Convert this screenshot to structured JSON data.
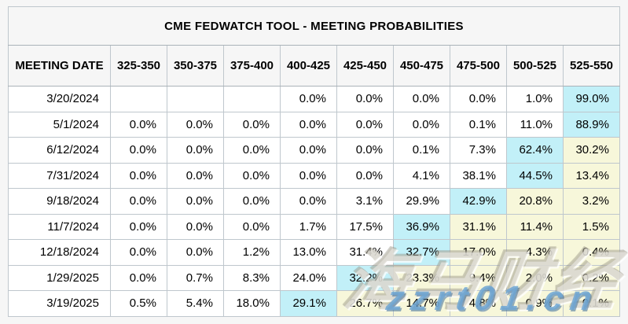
{
  "table": {
    "title": "CME FEDWATCH TOOL - MEETING PROBABILITIES",
    "columns": [
      "MEETING DATE",
      "325-350",
      "350-375",
      "375-400",
      "400-425",
      "425-450",
      "450-475",
      "475-500",
      "500-525",
      "525-550"
    ],
    "rows": [
      {
        "date": "3/20/2024",
        "values": [
          "",
          "",
          "",
          "0.0%",
          "0.0%",
          "0.0%",
          "0.0%",
          "1.0%",
          "99.0%"
        ],
        "hl": [
          "",
          "",
          "",
          "",
          "",
          "",
          "",
          "",
          "c"
        ]
      },
      {
        "date": "5/1/2024",
        "values": [
          "0.0%",
          "0.0%",
          "0.0%",
          "0.0%",
          "0.0%",
          "0.0%",
          "0.1%",
          "11.0%",
          "88.9%"
        ],
        "hl": [
          "",
          "",
          "",
          "",
          "",
          "",
          "",
          "",
          "c"
        ]
      },
      {
        "date": "6/12/2024",
        "values": [
          "0.0%",
          "0.0%",
          "0.0%",
          "0.0%",
          "0.0%",
          "0.1%",
          "7.3%",
          "62.4%",
          "30.2%"
        ],
        "hl": [
          "",
          "",
          "",
          "",
          "",
          "",
          "",
          "c",
          "y"
        ]
      },
      {
        "date": "7/31/2024",
        "values": [
          "0.0%",
          "0.0%",
          "0.0%",
          "0.0%",
          "0.0%",
          "4.1%",
          "38.1%",
          "44.5%",
          "13.4%"
        ],
        "hl": [
          "",
          "",
          "",
          "",
          "",
          "",
          "",
          "c",
          "y"
        ]
      },
      {
        "date": "9/18/2024",
        "values": [
          "0.0%",
          "0.0%",
          "0.0%",
          "0.0%",
          "3.1%",
          "29.9%",
          "42.9%",
          "20.8%",
          "3.2%"
        ],
        "hl": [
          "",
          "",
          "",
          "",
          "",
          "",
          "c",
          "y",
          "y"
        ]
      },
      {
        "date": "11/7/2024",
        "values": [
          "0.0%",
          "0.0%",
          "0.0%",
          "1.7%",
          "17.5%",
          "36.9%",
          "31.1%",
          "11.4%",
          "1.5%"
        ],
        "hl": [
          "",
          "",
          "",
          "",
          "",
          "c",
          "y",
          "y",
          "y"
        ]
      },
      {
        "date": "12/18/2024",
        "values": [
          "0.0%",
          "0.0%",
          "1.2%",
          "13.0%",
          "31.4%",
          "32.7%",
          "17.0%",
          "4.3%",
          "0.4%"
        ],
        "hl": [
          "",
          "",
          "",
          "",
          "",
          "c",
          "y",
          "y",
          "y"
        ]
      },
      {
        "date": "1/29/2025",
        "values": [
          "0.0%",
          "0.7%",
          "8.3%",
          "24.0%",
          "32.2%",
          "23.3%",
          "9.4%",
          "2.0%",
          "0.2%"
        ],
        "hl": [
          "",
          "",
          "",
          "",
          "c",
          "y",
          "y",
          "y",
          "y"
        ]
      },
      {
        "date": "3/19/2025",
        "values": [
          "0.5%",
          "5.4%",
          "18.0%",
          "29.1%",
          "26.7%",
          "14.7%",
          "4.8%",
          "0.9%",
          "0.1%"
        ],
        "hl": [
          "",
          "",
          "",
          "c",
          "y",
          "y",
          "y",
          "y",
          "y"
        ]
      }
    ]
  },
  "colors": {
    "highlight_cyan": "#c2f0f8",
    "highlight_yellow": "#f7f7da",
    "page_background": "#f6f6f6",
    "cell_background": "#ffffff",
    "outer_border": "#9e9e9e",
    "inner_border": "#bfc7cd",
    "watermark_blue": "#6ea6d4"
  },
  "layout": {
    "date_col_width": 130,
    "rate_col_width": 72
  },
  "watermark": {
    "brand": "海马财经",
    "url": "zzrt01.cn"
  }
}
